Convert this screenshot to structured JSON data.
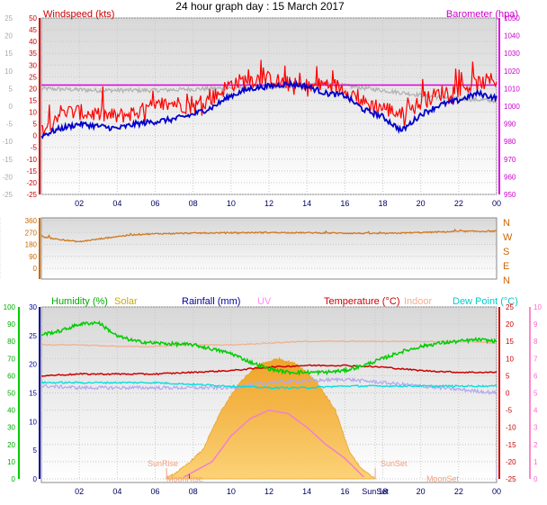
{
  "title": "24 hour graph day : 15 March 2017",
  "colors": {
    "wind": "#ff0000",
    "windAvg": "#0000cc",
    "baro": "#dd00dd",
    "baroGray": "#b0b0b0",
    "dir": "#d07820",
    "humidity": "#00cc00",
    "solar": "#ccaa00",
    "rainfall": "#000099",
    "uv": "#ff88ff",
    "temperature": "#cc0000",
    "indoor": "#f0b090",
    "dewpoint": "#00dddd",
    "solarFill": "#f5b030",
    "uvLine": "#f080d0"
  },
  "chart_data": [
    {
      "type": "line",
      "name": "wind-barometer",
      "x_ticks": [
        "02",
        "04",
        "06",
        "08",
        "10",
        "12",
        "14",
        "16",
        "18",
        "20",
        "22",
        "00"
      ],
      "left_axis": {
        "label": "Windspeed (kts)",
        "range": [
          -25,
          50
        ],
        "ticks": [
          "50",
          "45",
          "40",
          "35",
          "30",
          "25",
          "20",
          "15",
          "10",
          "5",
          "0",
          "-5",
          "-10",
          "-15",
          "-20",
          "-25"
        ],
        "outer_ticks": [
          "25",
          "20",
          "15",
          "10",
          "5",
          "0",
          "-5",
          "-10",
          "-15",
          "-20",
          "-25"
        ]
      },
      "right_axis": {
        "label": "Barometer (hpa)",
        "range": [
          960,
          1050
        ],
        "ticks": [
          "1050",
          "1040",
          "1030",
          "1020",
          "1010",
          "1000",
          "990",
          "980",
          "970",
          "960",
          "950"
        ]
      },
      "series": [
        {
          "key": "gust",
          "hours": [
            0,
            1,
            2,
            3,
            4,
            5,
            6,
            7,
            8,
            9,
            10,
            11,
            12,
            13,
            14,
            15,
            16,
            17,
            18,
            19,
            20,
            21,
            22,
            23,
            24
          ],
          "values": [
            2,
            10,
            10,
            9,
            8,
            10,
            12,
            14,
            12,
            16,
            22,
            24,
            24,
            22,
            20,
            22,
            20,
            14,
            12,
            9,
            14,
            18,
            20,
            22,
            24
          ]
        },
        {
          "key": "wind",
          "hours": [
            0,
            1,
            2,
            3,
            4,
            5,
            6,
            7,
            8,
            9,
            10,
            11,
            12,
            13,
            14,
            15,
            16,
            17,
            18,
            19,
            20,
            21,
            22,
            23,
            24
          ],
          "values": [
            0,
            3,
            5,
            4,
            3,
            5,
            6,
            7,
            9,
            12,
            17,
            20,
            21,
            22,
            21,
            18,
            17,
            11,
            8,
            2,
            9,
            13,
            15,
            18,
            16
          ]
        },
        {
          "key": "baro",
          "hours": [
            0,
            24
          ],
          "values": [
            1012,
            1012
          ]
        },
        {
          "key": "baro_gray",
          "hours": [
            0,
            3,
            6,
            9,
            12,
            15,
            18,
            21,
            24
          ],
          "values": [
            1010,
            1009,
            1009,
            1010,
            1011,
            1013,
            1009,
            1005,
            1003
          ]
        }
      ]
    },
    {
      "type": "line",
      "name": "wind-direction",
      "left_axis": {
        "ticks": [
          "360",
          "270",
          "180",
          "90",
          "0"
        ]
      },
      "right_axis": {
        "ticks": [
          "N",
          "W",
          "S",
          "E",
          "N"
        ]
      },
      "series": [
        {
          "key": "direction",
          "hours": [
            0,
            1,
            2,
            3,
            4,
            5,
            6,
            8,
            10,
            12,
            14,
            16,
            18,
            20,
            22,
            24
          ],
          "values": [
            240,
            215,
            200,
            220,
            240,
            255,
            260,
            265,
            268,
            270,
            268,
            265,
            262,
            270,
            278,
            280
          ]
        }
      ]
    },
    {
      "type": "line",
      "name": "humidity-temperature",
      "x_ticks": [
        "02",
        "04",
        "06",
        "08",
        "10",
        "12",
        "14",
        "16",
        "SunSet",
        "18",
        "20",
        "22",
        "00"
      ],
      "legend": [
        "Humidity (%)",
        "Solar",
        "Rainfall (mm)",
        "UV",
        "Temperature (°C)",
        "Indoor",
        "Dew Point (°C)"
      ],
      "annotations": [
        "SunRise",
        "SunSet",
        "MoonRise",
        "MoonSet"
      ],
      "humidity_axis": {
        "ticks": [
          "100",
          "90",
          "80",
          "70",
          "60",
          "50",
          "40",
          "30",
          "20",
          "10",
          "0"
        ]
      },
      "rain_axis": {
        "ticks": [
          "30",
          "25",
          "20",
          "15",
          "10",
          "5",
          "0"
        ]
      },
      "temp_axis": {
        "range": [
          -25,
          25
        ],
        "ticks": [
          "25",
          "20",
          "15",
          "10",
          "5",
          "0",
          "-5",
          "-10",
          "-15",
          "-20",
          "-25"
        ]
      },
      "uv_axis": {
        "ticks": [
          "10",
          "9",
          "8",
          "7",
          "6",
          "5",
          "4",
          "3",
          "2",
          "1",
          "0"
        ]
      },
      "series": [
        {
          "key": "humidity",
          "hours": [
            0,
            1,
            2,
            3,
            4,
            5,
            6,
            8,
            10,
            11,
            12,
            13,
            14,
            15,
            16,
            17,
            18,
            19,
            20,
            21,
            22,
            23,
            24
          ],
          "values": [
            84,
            86,
            90,
            91,
            83,
            80,
            79,
            78,
            73,
            68,
            64,
            62,
            62,
            62,
            63,
            66,
            70,
            74,
            77,
            79,
            80,
            81,
            80
          ]
        },
        {
          "key": "temperature",
          "hours": [
            0,
            2,
            4,
            6,
            8,
            10,
            12,
            14,
            16,
            18,
            20,
            22,
            24
          ],
          "values": [
            5,
            5.5,
            5.5,
            5.5,
            6,
            6.5,
            7.5,
            8,
            8,
            7.5,
            6.5,
            6,
            6
          ]
        },
        {
          "key": "indoor",
          "hours": [
            0,
            2,
            4,
            6,
            8,
            10,
            12,
            14,
            16,
            18,
            20,
            22,
            24
          ],
          "values": [
            14,
            14,
            13.5,
            13.5,
            14,
            14,
            14.5,
            15,
            15,
            15,
            15,
            15,
            14.5
          ]
        },
        {
          "key": "dewpoint",
          "hours": [
            0,
            2,
            4,
            6,
            8,
            10,
            12,
            14,
            16,
            18,
            20,
            22,
            24
          ],
          "values": [
            3,
            3,
            3,
            3,
            2.5,
            2,
            1.5,
            1.5,
            2,
            2,
            2,
            2,
            2
          ]
        },
        {
          "key": "uv_trace",
          "hours": [
            0,
            2,
            4,
            6,
            8,
            10,
            12,
            14,
            16,
            18,
            20,
            22,
            24
          ],
          "values": [
            2,
            1.5,
            1.5,
            1.5,
            1.5,
            1.5,
            3,
            3.5,
            4,
            3,
            2,
            1,
            0
          ]
        },
        {
          "key": "solar",
          "hours": [
            6.6,
            7.5,
            8.5,
            9.5,
            10.5,
            11.5,
            12.5,
            13.5,
            14.5,
            15.5,
            16.2,
            16.8,
            17.6
          ],
          "values": [
            0,
            2,
            5,
            12,
            17,
            20,
            21,
            20,
            17,
            12,
            5,
            2,
            0
          ]
        },
        {
          "key": "uv",
          "hours": [
            7.5,
            9,
            10,
            11,
            12,
            13,
            14,
            15,
            16,
            17
          ],
          "values": [
            0.1,
            1,
            2.5,
            3.5,
            4,
            3.8,
            3,
            2,
            1.2,
            0.1
          ]
        }
      ]
    }
  ]
}
